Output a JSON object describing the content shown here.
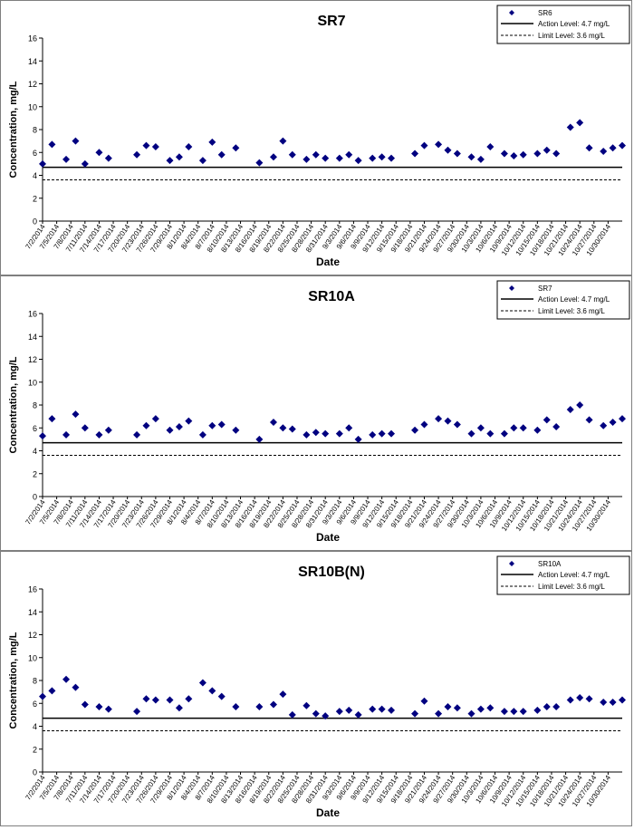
{
  "dates": [
    "7/2/2014",
    "7/5/2014",
    "7/8/2014",
    "7/11/2014",
    "7/14/2014",
    "7/17/2014",
    "7/20/2014",
    "7/23/2014",
    "7/26/2014",
    "7/29/2014",
    "8/1/2014",
    "8/4/2014",
    "8/7/2014",
    "8/10/2014",
    "8/13/2014",
    "8/16/2014",
    "8/19/2014",
    "8/22/2014",
    "8/25/2014",
    "8/28/2014",
    "8/31/2014",
    "9/3/2014",
    "9/6/2014",
    "9/9/2014",
    "9/12/2014",
    "9/15/2014",
    "9/18/2014",
    "9/21/2014",
    "9/24/2014",
    "9/27/2014",
    "9/30/2014",
    "10/3/2014",
    "10/6/2014",
    "10/9/2014",
    "10/12/2014",
    "10/15/2014",
    "10/18/2014",
    "10/21/2014",
    "10/24/2014",
    "10/27/2014",
    "10/30/2014"
  ],
  "chart_data": [
    {
      "type": "scatter",
      "title": "SR7",
      "xlabel": "Date",
      "ylabel": "Concentration, mg/L",
      "ylim": [
        0,
        16
      ],
      "yticks": [
        0,
        2,
        4,
        6,
        8,
        10,
        12,
        14,
        16
      ],
      "legend_position": "top-right",
      "grid": false,
      "series": [
        {
          "name": "SR6",
          "color": "#000080",
          "marker": "diamond",
          "points": [
            [
              "7/2/2014",
              5.0
            ],
            [
              "7/4/2014",
              6.7
            ],
            [
              "7/7/2014",
              5.4
            ],
            [
              "7/9/2014",
              7.0
            ],
            [
              "7/11/2014",
              5.0
            ],
            [
              "7/14/2014",
              6.0
            ],
            [
              "7/16/2014",
              5.5
            ],
            [
              "7/22/2014",
              5.8
            ],
            [
              "7/24/2014",
              6.6
            ],
            [
              "7/26/2014",
              6.5
            ],
            [
              "7/29/2014",
              5.3
            ],
            [
              "7/31/2014",
              5.6
            ],
            [
              "8/2/2014",
              6.5
            ],
            [
              "8/5/2014",
              5.3
            ],
            [
              "8/7/2014",
              6.9
            ],
            [
              "8/9/2014",
              5.8
            ],
            [
              "8/12/2014",
              6.4
            ],
            [
              "8/17/2014",
              5.1
            ],
            [
              "8/20/2014",
              5.6
            ],
            [
              "8/22/2014",
              7.0
            ],
            [
              "8/24/2014",
              5.8
            ],
            [
              "8/27/2014",
              5.4
            ],
            [
              "8/29/2014",
              5.8
            ],
            [
              "8/31/2014",
              5.5
            ],
            [
              "9/3/2014",
              5.5
            ],
            [
              "9/5/2014",
              5.8
            ],
            [
              "9/7/2014",
              5.3
            ],
            [
              "9/10/2014",
              5.5
            ],
            [
              "9/12/2014",
              5.6
            ],
            [
              "9/14/2014",
              5.5
            ],
            [
              "9/19/2014",
              5.9
            ],
            [
              "9/21/2014",
              6.6
            ],
            [
              "9/24/2014",
              6.7
            ],
            [
              "9/26/2014",
              6.2
            ],
            [
              "9/28/2014",
              5.9
            ],
            [
              "10/1/2014",
              5.6
            ],
            [
              "10/3/2014",
              5.4
            ],
            [
              "10/5/2014",
              6.5
            ],
            [
              "10/8/2014",
              5.9
            ],
            [
              "10/10/2014",
              5.7
            ],
            [
              "10/12/2014",
              5.8
            ],
            [
              "10/15/2014",
              5.9
            ],
            [
              "10/17/2014",
              6.2
            ],
            [
              "10/19/2014",
              5.9
            ],
            [
              "10/22/2014",
              8.2
            ],
            [
              "10/24/2014",
              8.6
            ],
            [
              "10/26/2014",
              6.4
            ],
            [
              "10/29/2014",
              6.1
            ],
            [
              "10/31/2014",
              6.4
            ],
            [
              "11/2/2014",
              6.6
            ]
          ]
        }
      ],
      "reference_lines": [
        {
          "name": "Action Level: 4.7 mg/L",
          "value": 4.7,
          "style": "solid"
        },
        {
          "name": "Limit Level: 3.6 mg/L",
          "value": 3.6,
          "style": "dashed"
        }
      ]
    },
    {
      "type": "scatter",
      "title": "SR10A",
      "xlabel": "Date",
      "ylabel": "Concentration, mg/L",
      "ylim": [
        0,
        16
      ],
      "yticks": [
        0,
        2,
        4,
        6,
        8,
        10,
        12,
        14,
        16
      ],
      "legend_position": "top-right",
      "grid": false,
      "series": [
        {
          "name": "SR7",
          "color": "#000080",
          "marker": "diamond",
          "points": [
            [
              "7/2/2014",
              5.3
            ],
            [
              "7/4/2014",
              6.8
            ],
            [
              "7/7/2014",
              5.4
            ],
            [
              "7/9/2014",
              7.2
            ],
            [
              "7/11/2014",
              6.0
            ],
            [
              "7/14/2014",
              5.4
            ],
            [
              "7/16/2014",
              5.8
            ],
            [
              "7/22/2014",
              5.4
            ],
            [
              "7/24/2014",
              6.2
            ],
            [
              "7/26/2014",
              6.8
            ],
            [
              "7/29/2014",
              5.8
            ],
            [
              "7/31/2014",
              6.1
            ],
            [
              "8/2/2014",
              6.6
            ],
            [
              "8/5/2014",
              5.4
            ],
            [
              "8/7/2014",
              6.2
            ],
            [
              "8/9/2014",
              6.3
            ],
            [
              "8/12/2014",
              5.8
            ],
            [
              "8/17/2014",
              5.0
            ],
            [
              "8/20/2014",
              6.5
            ],
            [
              "8/22/2014",
              6.0
            ],
            [
              "8/24/2014",
              5.9
            ],
            [
              "8/27/2014",
              5.4
            ],
            [
              "8/29/2014",
              5.6
            ],
            [
              "8/31/2014",
              5.5
            ],
            [
              "9/3/2014",
              5.5
            ],
            [
              "9/5/2014",
              6.0
            ],
            [
              "9/7/2014",
              5.0
            ],
            [
              "9/10/2014",
              5.4
            ],
            [
              "9/12/2014",
              5.5
            ],
            [
              "9/14/2014",
              5.5
            ],
            [
              "9/19/2014",
              5.8
            ],
            [
              "9/21/2014",
              6.3
            ],
            [
              "9/24/2014",
              6.8
            ],
            [
              "9/26/2014",
              6.6
            ],
            [
              "9/28/2014",
              6.3
            ],
            [
              "10/1/2014",
              5.5
            ],
            [
              "10/3/2014",
              6.0
            ],
            [
              "10/5/2014",
              5.5
            ],
            [
              "10/8/2014",
              5.5
            ],
            [
              "10/10/2014",
              6.0
            ],
            [
              "10/12/2014",
              6.0
            ],
            [
              "10/15/2014",
              5.8
            ],
            [
              "10/17/2014",
              6.7
            ],
            [
              "10/19/2014",
              6.1
            ],
            [
              "10/22/2014",
              7.6
            ],
            [
              "10/24/2014",
              8.0
            ],
            [
              "10/26/2014",
              6.7
            ],
            [
              "10/29/2014",
              6.2
            ],
            [
              "10/31/2014",
              6.5
            ],
            [
              "11/2/2014",
              6.8
            ]
          ]
        }
      ],
      "reference_lines": [
        {
          "name": "Action Level: 4.7 mg/L",
          "value": 4.7,
          "style": "solid"
        },
        {
          "name": "Limit Level: 3.6 mg/L",
          "value": 3.6,
          "style": "dashed"
        }
      ]
    },
    {
      "type": "scatter",
      "title": "SR10B(N)",
      "xlabel": "Date",
      "ylabel": "Concentration, mg/L",
      "ylim": [
        0,
        16
      ],
      "yticks": [
        0,
        2,
        4,
        6,
        8,
        10,
        12,
        14,
        16
      ],
      "legend_position": "top-right",
      "grid": false,
      "series": [
        {
          "name": "SR10A",
          "color": "#000080",
          "marker": "diamond",
          "points": [
            [
              "7/2/2014",
              6.6
            ],
            [
              "7/4/2014",
              7.1
            ],
            [
              "7/7/2014",
              8.1
            ],
            [
              "7/9/2014",
              7.4
            ],
            [
              "7/11/2014",
              5.9
            ],
            [
              "7/14/2014",
              5.7
            ],
            [
              "7/16/2014",
              5.5
            ],
            [
              "7/22/2014",
              5.3
            ],
            [
              "7/24/2014",
              6.4
            ],
            [
              "7/26/2014",
              6.3
            ],
            [
              "7/29/2014",
              6.3
            ],
            [
              "7/31/2014",
              5.6
            ],
            [
              "8/2/2014",
              6.4
            ],
            [
              "8/5/2014",
              7.8
            ],
            [
              "8/7/2014",
              7.1
            ],
            [
              "8/9/2014",
              6.6
            ],
            [
              "8/12/2014",
              5.7
            ],
            [
              "8/17/2014",
              5.7
            ],
            [
              "8/20/2014",
              5.9
            ],
            [
              "8/22/2014",
              6.8
            ],
            [
              "8/24/2014",
              5.0
            ],
            [
              "8/27/2014",
              5.8
            ],
            [
              "8/29/2014",
              5.1
            ],
            [
              "8/31/2014",
              4.9
            ],
            [
              "9/3/2014",
              5.3
            ],
            [
              "9/5/2014",
              5.4
            ],
            [
              "9/7/2014",
              5.0
            ],
            [
              "9/10/2014",
              5.5
            ],
            [
              "9/12/2014",
              5.5
            ],
            [
              "9/14/2014",
              5.4
            ],
            [
              "9/19/2014",
              5.1
            ],
            [
              "9/21/2014",
              6.2
            ],
            [
              "9/24/2014",
              5.1
            ],
            [
              "9/26/2014",
              5.7
            ],
            [
              "9/28/2014",
              5.6
            ],
            [
              "10/1/2014",
              5.1
            ],
            [
              "10/3/2014",
              5.5
            ],
            [
              "10/5/2014",
              5.6
            ],
            [
              "10/8/2014",
              5.3
            ],
            [
              "10/10/2014",
              5.3
            ],
            [
              "10/12/2014",
              5.3
            ],
            [
              "10/15/2014",
              5.4
            ],
            [
              "10/17/2014",
              5.7
            ],
            [
              "10/19/2014",
              5.7
            ],
            [
              "10/22/2014",
              6.3
            ],
            [
              "10/24/2014",
              6.5
            ],
            [
              "10/26/2014",
              6.4
            ],
            [
              "10/29/2014",
              6.1
            ],
            [
              "10/31/2014",
              6.1
            ],
            [
              "11/2/2014",
              6.3
            ]
          ]
        }
      ],
      "reference_lines": [
        {
          "name": "Action Level: 4.7 mg/L",
          "value": 4.7,
          "style": "solid"
        },
        {
          "name": "Limit Level: 3.6 mg/L",
          "value": 3.6,
          "style": "dashed"
        }
      ]
    }
  ]
}
